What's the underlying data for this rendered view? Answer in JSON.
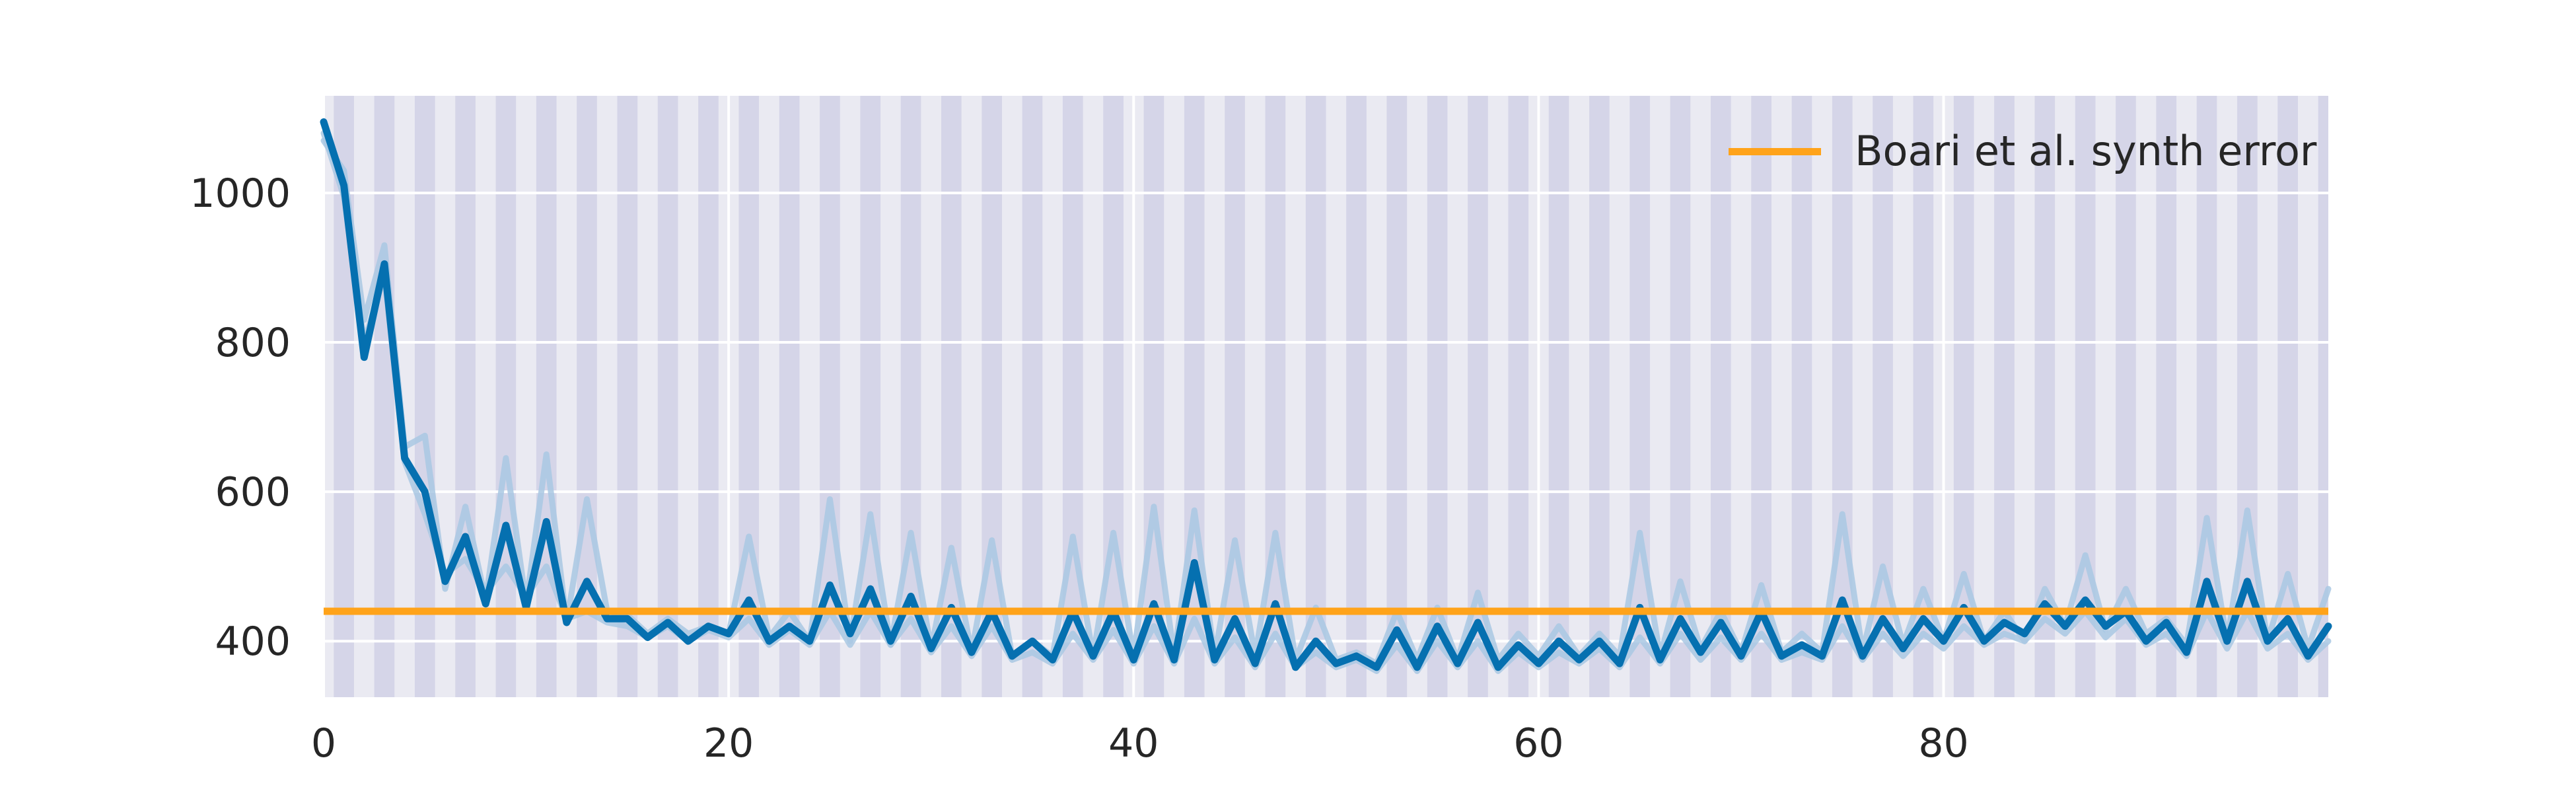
{
  "chart_data": {
    "type": "line",
    "title": "",
    "xlabel": "",
    "ylabel": "",
    "xlim": [
      0,
      99
    ],
    "ylim": [
      325,
      1130
    ],
    "xticks": [
      0,
      20,
      40,
      60,
      80
    ],
    "yticks": [
      400,
      600,
      800,
      1000
    ],
    "grid": true,
    "stripes": "alternating shaded bands every 1 unit",
    "legend": {
      "position": "top-right",
      "entries": [
        "Boari et al. synth error"
      ]
    },
    "colors": {
      "background": "#eaeaf2",
      "stripe": "#d5d5e8",
      "grid": "#ffffff",
      "main_line": "#0570b0",
      "faint_line": "#a9c8e3",
      "reference_line": "#ffa31a",
      "text": "#262626"
    },
    "series": [
      {
        "role": "main",
        "values": [
          1095,
          1010,
          780,
          905,
          645,
          600,
          480,
          540,
          450,
          555,
          445,
          560,
          425,
          480,
          430,
          430,
          405,
          425,
          400,
          420,
          410,
          455,
          400,
          420,
          400,
          475,
          410,
          470,
          400,
          460,
          390,
          445,
          385,
          440,
          380,
          400,
          375,
          440,
          380,
          440,
          375,
          450,
          375,
          505,
          375,
          430,
          370,
          450,
          365,
          400,
          370,
          380,
          365,
          415,
          365,
          420,
          370,
          425,
          365,
          395,
          370,
          400,
          375,
          400,
          370,
          445,
          375,
          430,
          385,
          425,
          380,
          440,
          380,
          395,
          380,
          455,
          380,
          430,
          390,
          430,
          400,
          445,
          400,
          425,
          410,
          450,
          420,
          455,
          420,
          440,
          400,
          425,
          385,
          480,
          400,
          480,
          400,
          430,
          380,
          420
        ]
      },
      {
        "role": "faint",
        "values": [
          1070,
          1030,
          830,
          930,
          660,
          675,
          470,
          580,
          455,
          645,
          450,
          650,
          425,
          590,
          440,
          435,
          410,
          430,
          410,
          420,
          410,
          540,
          405,
          440,
          400,
          590,
          400,
          570,
          395,
          545,
          390,
          525,
          385,
          535,
          380,
          400,
          380,
          540,
          380,
          545,
          380,
          580,
          380,
          575,
          380,
          535,
          380,
          545,
          375,
          445,
          375,
          385,
          370,
          440,
          375,
          445,
          375,
          465,
          375,
          410,
          380,
          420,
          380,
          410,
          380,
          545,
          380,
          480,
          390,
          440,
          385,
          475,
          385,
          410,
          385,
          570,
          385,
          500,
          395,
          470,
          400,
          490,
          400,
          440,
          400,
          470,
          420,
          515,
          415,
          470,
          410,
          430,
          395,
          565,
          400,
          575,
          400,
          490,
          390,
          470
        ]
      },
      {
        "role": "faint",
        "values": [
          1080,
          995,
          800,
          890,
          640,
          570,
          490,
          510,
          465,
          500,
          460,
          500,
          430,
          440,
          425,
          420,
          405,
          420,
          400,
          415,
          405,
          430,
          395,
          415,
          395,
          440,
          395,
          440,
          395,
          430,
          385,
          420,
          380,
          420,
          375,
          385,
          370,
          410,
          375,
          415,
          370,
          420,
          370,
          430,
          370,
          405,
          365,
          410,
          365,
          385,
          365,
          375,
          360,
          395,
          360,
          400,
          365,
          400,
          360,
          385,
          365,
          385,
          370,
          390,
          365,
          405,
          370,
          410,
          375,
          405,
          375,
          410,
          375,
          385,
          375,
          420,
          375,
          410,
          380,
          410,
          390,
          420,
          395,
          410,
          400,
          430,
          410,
          440,
          405,
          430,
          395,
          410,
          380,
          440,
          390,
          440,
          390,
          410,
          375,
          400
        ]
      },
      {
        "role": "reference",
        "name": "Boari et al. synth error",
        "value": 440
      }
    ]
  }
}
